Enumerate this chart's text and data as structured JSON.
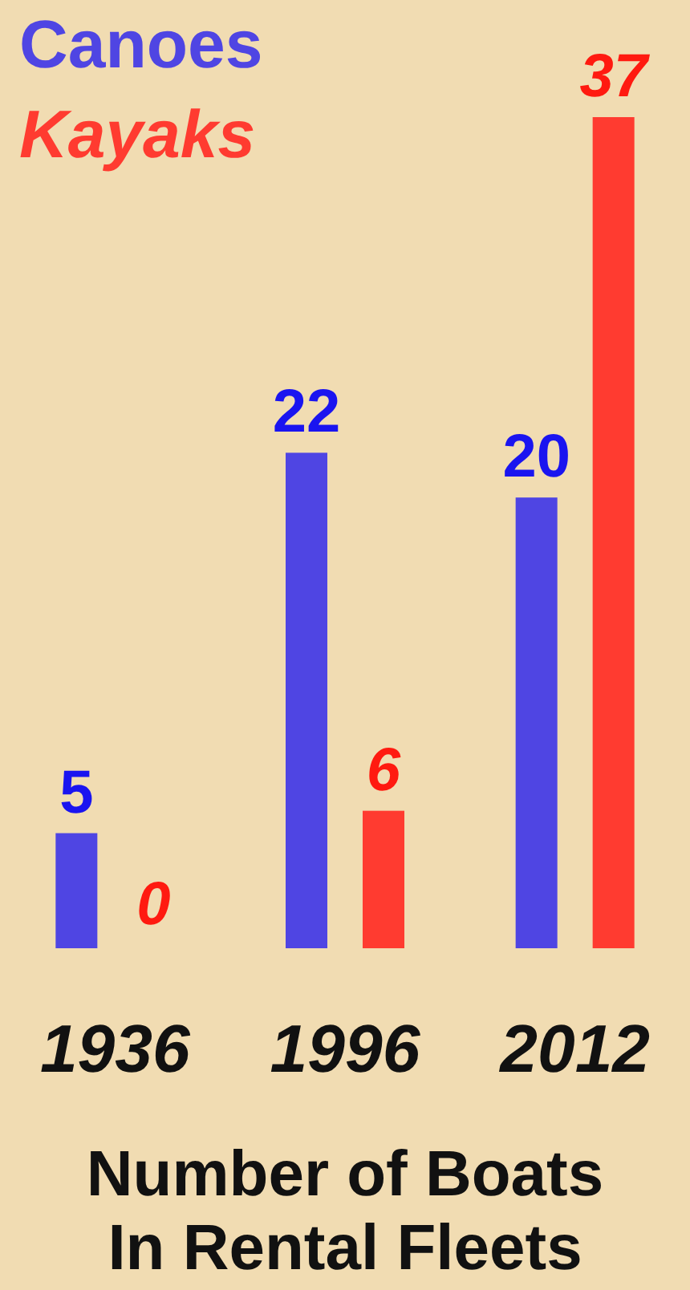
{
  "chart_data": {
    "type": "bar",
    "title": "Number of Boats In Rental Fleets",
    "categories": [
      "1936",
      "1996",
      "2012"
    ],
    "series": [
      {
        "name": "Canoes",
        "color": "#4f45e3",
        "values": [
          5,
          22,
          20
        ]
      },
      {
        "name": "Kayaks",
        "color": "#ff3b30",
        "values": [
          0,
          6,
          37
        ]
      }
    ],
    "data_labels": true,
    "legend": "top left"
  }
}
